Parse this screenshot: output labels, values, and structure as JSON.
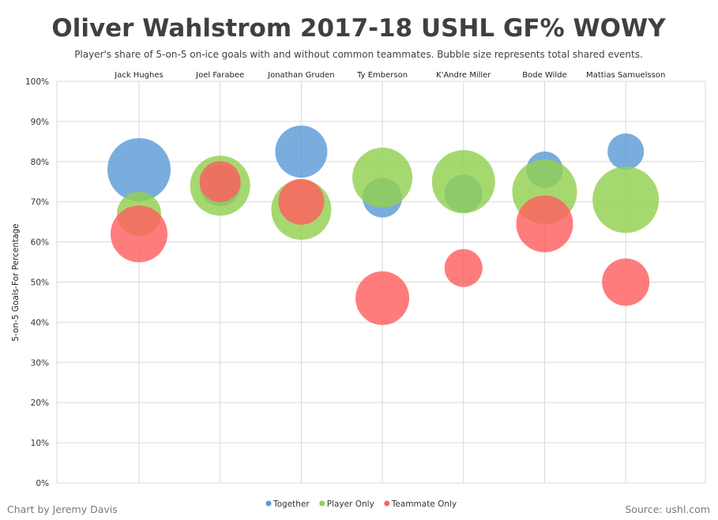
{
  "chart_data": {
    "type": "scatter",
    "title": "Oliver Wahlstrom 2017-18 USHL GF% WOWY",
    "subtitle": "Player's share of 5-on-5 on-ice goals with and without common teammates. Bubble size represents total shared events.",
    "ylabel": "5-on-5 Goals-For Percentage",
    "ylim": [
      0,
      100
    ],
    "yticks": [
      "0%",
      "10%",
      "20%",
      "30%",
      "40%",
      "50%",
      "60%",
      "70%",
      "80%",
      "90%",
      "100%"
    ],
    "categories": [
      "Jack Hughes",
      "Joel Farabee",
      "Jonathan Gruden",
      "Ty Emberson",
      "K'Andre Miller",
      "Bode Wilde",
      "Mattias Samuelsson"
    ],
    "series": [
      {
        "name": "Together",
        "color": "#5b9bd5",
        "values": [
          78,
          74,
          82.5,
          71,
          72,
          78,
          82.5
        ],
        "sizes": [
          40,
          26,
          33,
          25,
          24,
          23,
          23
        ]
      },
      {
        "name": "Player Only",
        "color": "#92d050",
        "values": [
          67,
          74,
          68,
          76,
          75,
          72.5,
          70.5
        ],
        "sizes": [
          28,
          38,
          38,
          38,
          40,
          41,
          42
        ]
      },
      {
        "name": "Teammate Only",
        "color": "#ff5f5f",
        "values": [
          62,
          75,
          70,
          46,
          53.5,
          64.5,
          50
        ],
        "sizes": [
          36,
          26,
          29,
          34,
          24,
          36,
          30
        ]
      }
    ],
    "grid": true,
    "legend_position": "bottom"
  },
  "footer": {
    "credit": "Chart by Jeremy Davis",
    "source": "Source: ushl.com"
  }
}
